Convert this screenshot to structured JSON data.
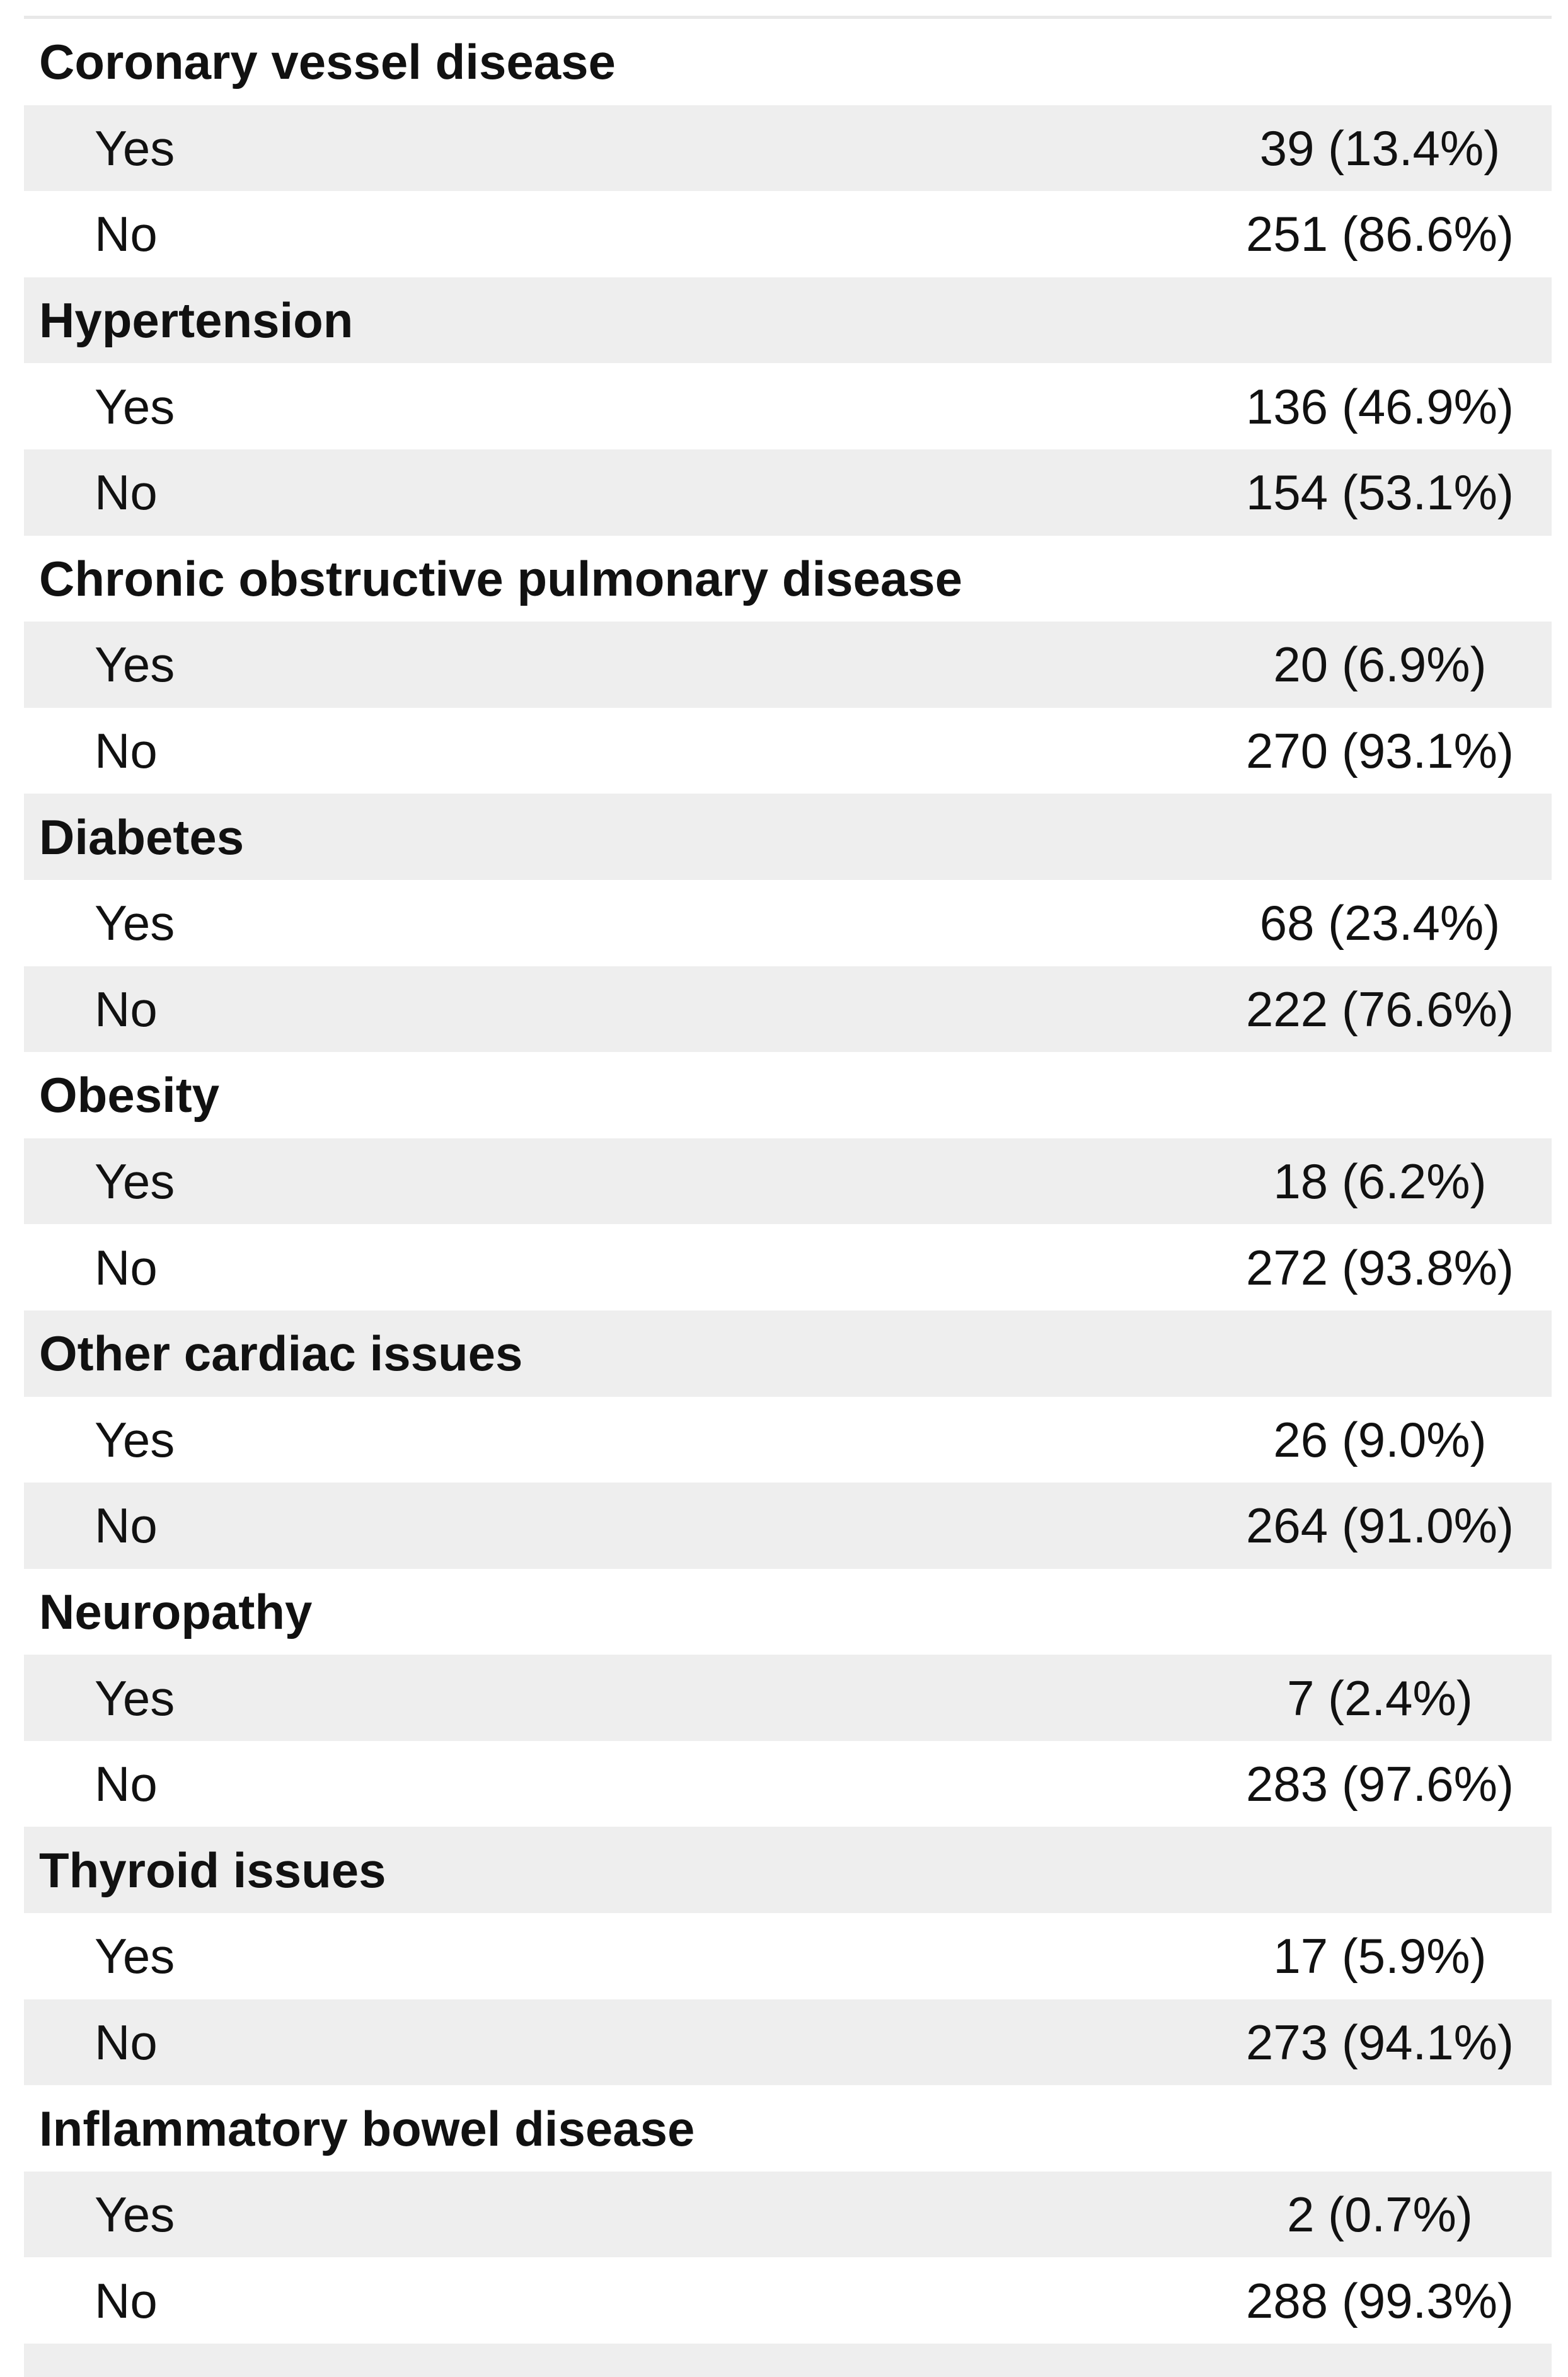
{
  "table": {
    "description": "Comorbidities frequency table with counts and percentages",
    "value_format": "n (%)",
    "sections": [
      {
        "label": "Coronary vessel disease",
        "options": [
          {
            "label": "Yes",
            "value": "39 (13.4%)"
          },
          {
            "label": "No",
            "value": "251 (86.6%)"
          }
        ]
      },
      {
        "label": "Hypertension",
        "options": [
          {
            "label": "Yes",
            "value": "136 (46.9%)"
          },
          {
            "label": "No",
            "value": "154 (53.1%)"
          }
        ]
      },
      {
        "label": "Chronic obstructive pulmonary disease",
        "options": [
          {
            "label": "Yes",
            "value": "20 (6.9%)"
          },
          {
            "label": "No",
            "value": "270 (93.1%)"
          }
        ]
      },
      {
        "label": "Diabetes",
        "options": [
          {
            "label": "Yes",
            "value": "68 (23.4%)"
          },
          {
            "label": "No",
            "value": "222 (76.6%)"
          }
        ]
      },
      {
        "label": "Obesity",
        "options": [
          {
            "label": "Yes",
            "value": "18 (6.2%)"
          },
          {
            "label": "No",
            "value": "272 (93.8%)"
          }
        ]
      },
      {
        "label": "Other cardiac issues",
        "options": [
          {
            "label": "Yes",
            "value": "26 (9.0%)"
          },
          {
            "label": "No",
            "value": "264 (91.0%)"
          }
        ]
      },
      {
        "label": "Neuropathy",
        "options": [
          {
            "label": "Yes",
            "value": "7 (2.4%)"
          },
          {
            "label": "No",
            "value": "283 (97.6%)"
          }
        ]
      },
      {
        "label": "Thyroid issues",
        "options": [
          {
            "label": "Yes",
            "value": "17 (5.9%)"
          },
          {
            "label": "No",
            "value": "273 (94.1%)"
          }
        ]
      },
      {
        "label": "Inflammatory bowel disease",
        "options": [
          {
            "label": "Yes",
            "value": "2 (0.7%)"
          },
          {
            "label": "No",
            "value": "288 (99.3%)"
          }
        ]
      }
    ]
  },
  "colors": {
    "row_shade": "#eeeeee",
    "top_rule": "#e8e8e8",
    "text": "#111111",
    "background": "#ffffff"
  }
}
